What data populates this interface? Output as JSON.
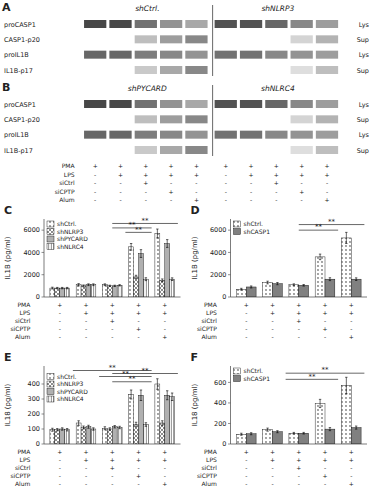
{
  "chart_data": [
    {
      "type": "heatmap",
      "title": "A",
      "columns": [
        "shCtrl.",
        "shNLRP3"
      ],
      "rows": [
        "proCASP1",
        "CASP1-p20",
        "proIL1B",
        "IL1B-p17"
      ],
      "row_side_labels": [
        "Lys",
        "Sup",
        "Lys",
        "Sup"
      ],
      "cells": [
        [
          0.85,
          0.85,
          0.65,
          0.5,
          0.4,
          0.8,
          0.8,
          0.7,
          0.55,
          0.45
        ],
        [
          0.0,
          0.0,
          0.3,
          0.45,
          0.55,
          0.0,
          0.0,
          0.0,
          0.2,
          0.35
        ],
        [
          0.7,
          0.7,
          0.6,
          0.55,
          0.5,
          0.65,
          0.65,
          0.55,
          0.5,
          0.45
        ],
        [
          0.0,
          0.0,
          0.25,
          0.4,
          0.55,
          0.0,
          0.0,
          0.0,
          0.15,
          0.3
        ]
      ]
    },
    {
      "type": "heatmap",
      "title": "B",
      "columns": [
        "shPYCARD",
        "shNLRC4"
      ],
      "rows": [
        "proCASP1",
        "CASP1-p20",
        "proIL1B",
        "IL1B-p17"
      ],
      "row_side_labels": [
        "Lys",
        "Sup",
        "Lys",
        "Sup"
      ],
      "cells": [
        [
          0.85,
          0.85,
          0.65,
          0.5,
          0.4,
          0.8,
          0.8,
          0.7,
          0.55,
          0.45
        ],
        [
          0.0,
          0.0,
          0.3,
          0.45,
          0.55,
          0.0,
          0.0,
          0.0,
          0.2,
          0.35
        ],
        [
          0.7,
          0.7,
          0.6,
          0.55,
          0.5,
          0.65,
          0.65,
          0.55,
          0.5,
          0.45
        ],
        [
          0.0,
          0.0,
          0.25,
          0.4,
          0.55,
          0.0,
          0.0,
          0.0,
          0.15,
          0.3
        ]
      ],
      "conditions": [
        {
          "name": "PMA",
          "signs": [
            "+",
            "+",
            "+",
            "+",
            "+"
          ]
        },
        {
          "name": "LPS",
          "signs": [
            "-",
            "+",
            "+",
            "+",
            "+"
          ]
        },
        {
          "name": "siCtrl",
          "signs": [
            "-",
            "-",
            "+",
            "-",
            "-"
          ]
        },
        {
          "name": "siCPTP",
          "signs": [
            "-",
            "-",
            "-",
            "+",
            "-"
          ]
        },
        {
          "name": "Alum",
          "signs": [
            "-",
            "-",
            "-",
            "-",
            "+"
          ]
        }
      ]
    },
    {
      "type": "bar",
      "title": "C",
      "ylabel": "IL1B (pg/ml)",
      "categories": [
        null,
        null,
        null,
        null,
        null
      ],
      "ylim": [
        0,
        7000
      ],
      "yticks": [
        0,
        2000,
        4000,
        6000
      ],
      "legend": "upper left",
      "tick_labels": "y",
      "series": [
        {
          "name": "shCtrl.",
          "color": "white",
          "values": [
            800,
            1100,
            1100,
            4500,
            5700
          ],
          "errors": [
            80,
            100,
            80,
            300,
            400
          ]
        },
        {
          "name": "shNLRP3",
          "color": "white",
          "values": [
            800,
            1000,
            1000,
            1800,
            1500
          ],
          "errors": [
            60,
            80,
            60,
            150,
            120
          ]
        },
        {
          "name": "shPYCARD",
          "color": "#b0b0b0",
          "values": [
            800,
            1100,
            1000,
            3900,
            4800
          ],
          "errors": [
            60,
            80,
            60,
            350,
            350
          ]
        },
        {
          "name": "shNLRC4",
          "color": "white",
          "values": [
            800,
            1100,
            1050,
            1600,
            1600
          ],
          "errors": [
            60,
            80,
            60,
            130,
            120
          ]
        }
      ],
      "annotations": [
        {
          "text": "**",
          "x1": 2.0,
          "x2": 3.5,
          "y": 6200
        },
        {
          "text": "**",
          "x1": 2.0,
          "x2": 4.5,
          "y": 6600
        },
        {
          "text": "**",
          "x1": 2.5,
          "x2": 3.5,
          "y": 5800
        }
      ],
      "conditions": [
        {
          "name": "PMA",
          "signs": [
            "+",
            "+",
            "+",
            "+",
            "+"
          ]
        },
        {
          "name": "LPS",
          "signs": [
            "-",
            "+",
            "+",
            "+",
            "+"
          ]
        },
        {
          "name": "siCtrl",
          "signs": [
            "-",
            "-",
            "+",
            "-",
            "-"
          ]
        },
        {
          "name": "siCPTP",
          "signs": [
            "-",
            "-",
            "-",
            "+",
            "-"
          ]
        },
        {
          "name": "Alum",
          "signs": [
            "-",
            "-",
            "-",
            "-",
            "+"
          ]
        }
      ]
    },
    {
      "type": "bar",
      "title": "D",
      "ylabel": "IL1B (pg/ml)",
      "categories": [
        null,
        null,
        null,
        null,
        null
      ],
      "ylim": [
        0,
        7000
      ],
      "yticks": [
        0,
        2000,
        4000,
        6000
      ],
      "legend": "upper left",
      "tick_labels": "y",
      "series": [
        {
          "name": "shCtrl.",
          "color": "white",
          "values": [
            700,
            1300,
            1100,
            3600,
            5300
          ],
          "errors": [
            80,
            120,
            80,
            250,
            500
          ]
        },
        {
          "name": "shCASP1",
          "color": "#808080",
          "values": [
            900,
            1200,
            1050,
            1600,
            1600
          ],
          "errors": [
            90,
            100,
            70,
            130,
            120
          ]
        }
      ],
      "annotations": [
        {
          "text": "**",
          "x1": 2.0,
          "x2": 3.5,
          "y": 6000
        },
        {
          "text": "**",
          "x1": 2.0,
          "x2": 4.5,
          "y": 6500
        }
      ],
      "conditions": [
        {
          "name": "PMA",
          "signs": [
            "+",
            "+",
            "+",
            "+",
            "+"
          ]
        },
        {
          "name": "LPS",
          "signs": [
            "-",
            "+",
            "+",
            "+",
            "+"
          ]
        },
        {
          "name": "siCtrl",
          "signs": [
            "-",
            "-",
            "+",
            "-",
            "-"
          ]
        },
        {
          "name": "siCPTP",
          "signs": [
            "-",
            "-",
            "-",
            "+",
            "-"
          ]
        },
        {
          "name": "Alum",
          "signs": [
            "-",
            "-",
            "-",
            "-",
            "+"
          ]
        }
      ]
    },
    {
      "type": "bar",
      "title": "E",
      "ylabel": "IL18 (pg/ml)",
      "categories": [
        null,
        null,
        null,
        null,
        null
      ],
      "ylim": [
        0,
        520
      ],
      "yticks": [
        0,
        100,
        200,
        300,
        400
      ],
      "legend": "upper left",
      "tick_labels": "y",
      "series": [
        {
          "name": "shCtrl.",
          "color": "white",
          "values": [
            95,
            140,
            105,
            330,
            400
          ],
          "errors": [
            10,
            15,
            10,
            30,
            35
          ]
        },
        {
          "name": "shNLRP3",
          "color": "white",
          "values": [
            95,
            110,
            100,
            130,
            140
          ],
          "errors": [
            8,
            10,
            8,
            15,
            15
          ]
        },
        {
          "name": "shPYCARD",
          "color": "#b0b0b0",
          "values": [
            100,
            115,
            115,
            325,
            325
          ],
          "errors": [
            8,
            10,
            8,
            35,
            30
          ]
        },
        {
          "name": "shNLRC4",
          "color": "white",
          "values": [
            95,
            100,
            110,
            130,
            315
          ],
          "errors": [
            8,
            8,
            8,
            12,
            25
          ]
        }
      ],
      "annotations": [
        {
          "text": "**",
          "x1": 0.5,
          "x2": 3.5,
          "y": 490
        },
        {
          "text": "**",
          "x1": 1.5,
          "x2": 3.5,
          "y": 450
        },
        {
          "text": "**",
          "x1": 2.0,
          "x2": 3.5,
          "y": 415
        },
        {
          "text": "**",
          "x1": 2.0,
          "x2": 4.5,
          "y": 470
        }
      ],
      "conditions": [
        {
          "name": "PMA",
          "signs": [
            "+",
            "+",
            "+",
            "+",
            "+"
          ]
        },
        {
          "name": "LPS",
          "signs": [
            "-",
            "+",
            "+",
            "+",
            "+"
          ]
        },
        {
          "name": "siCtrl",
          "signs": [
            "-",
            "-",
            "+",
            "-",
            "-"
          ]
        },
        {
          "name": "siCPTP",
          "signs": [
            "-",
            "-",
            "-",
            "+",
            "-"
          ]
        },
        {
          "name": "Alum",
          "signs": [
            "-",
            "-",
            "-",
            "-",
            "+"
          ]
        }
      ]
    },
    {
      "type": "bar",
      "title": "F",
      "ylabel": "IL18 (pg/ml)",
      "categories": [
        null,
        null,
        null,
        null,
        null
      ],
      "ylim": [
        0,
        760
      ],
      "yticks": [
        0,
        200,
        400,
        600
      ],
      "legend": "upper left",
      "tick_labels": "y",
      "series": [
        {
          "name": "shCtrl.",
          "color": "white",
          "values": [
            95,
            140,
            105,
            395,
            570
          ],
          "errors": [
            10,
            15,
            8,
            40,
            80
          ]
        },
        {
          "name": "shCASP1",
          "color": "#808080",
          "values": [
            100,
            120,
            105,
            145,
            160
          ],
          "errors": [
            10,
            10,
            8,
            15,
            15
          ]
        }
      ],
      "annotations": [
        {
          "text": "**",
          "x1": 1.5,
          "x2": 3.5,
          "y": 630
        },
        {
          "text": "**",
          "x1": 1.5,
          "x2": 4.5,
          "y": 690
        }
      ],
      "conditions": [
        {
          "name": "PMA",
          "signs": [
            "+",
            "+",
            "+",
            "+",
            "+"
          ]
        },
        {
          "name": "LPS",
          "signs": [
            "-",
            "+",
            "+",
            "+",
            "+"
          ]
        },
        {
          "name": "siCtrl",
          "signs": [
            "-",
            "-",
            "+",
            "-",
            "-"
          ]
        },
        {
          "name": "siCPTP",
          "signs": [
            "-",
            "-",
            "-",
            "+",
            "-"
          ]
        },
        {
          "name": "Alum",
          "signs": [
            "-",
            "-",
            "-",
            "-",
            "+"
          ]
        }
      ]
    }
  ]
}
